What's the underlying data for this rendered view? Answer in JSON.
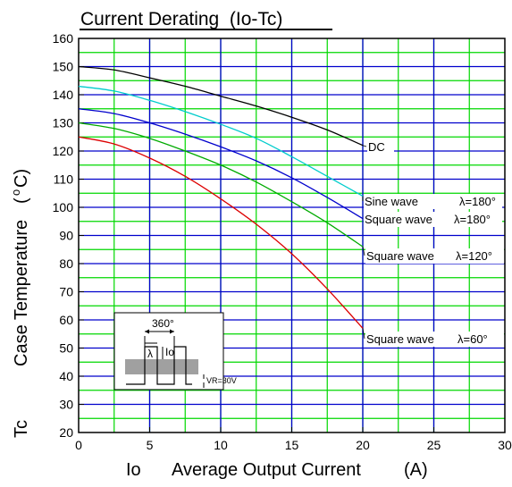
{
  "chart_data": {
    "type": "line",
    "title": "Current Derating  (Io-Tc)",
    "xlabel": {
      "symbol": "Io",
      "text": "Average Output Current",
      "unit": "(A)"
    },
    "ylabel": {
      "symbol": "Tc",
      "text": "Case Temperature",
      "unit_open": "(",
      "unit_sup": "o",
      "unit_rest": "C)"
    },
    "xlim": [
      0,
      30
    ],
    "ylim": [
      20,
      160
    ],
    "x_ticks": [
      0,
      5,
      10,
      15,
      20,
      25,
      30
    ],
    "y_ticks": [
      20,
      30,
      40,
      50,
      60,
      70,
      80,
      90,
      100,
      110,
      120,
      130,
      140,
      150,
      160
    ],
    "grid": true,
    "grid_colors": {
      "vertical": "#00d800",
      "horizontal_major": "#0000cc",
      "horizontal_minor": "#00d800"
    },
    "series": [
      {
        "label": "DC",
        "color": "#000000",
        "x": [
          0,
          2.5,
          5,
          7.5,
          10,
          12.5,
          15,
          17.5,
          20
        ],
        "y": [
          150,
          148.8,
          146,
          143,
          139.5,
          136,
          132,
          127.5,
          122
        ]
      },
      {
        "label": "Sine wave",
        "lambda": "λ=180°",
        "color": "#00cccc",
        "x": [
          0,
          2.5,
          5,
          7.5,
          10,
          12.5,
          15,
          17.5,
          20
        ],
        "y": [
          143,
          141.3,
          138,
          134,
          129.5,
          124.5,
          118,
          111,
          104
        ]
      },
      {
        "label": "Square wave",
        "lambda": "λ=180°",
        "color": "#0000cc",
        "x": [
          0,
          2.5,
          5,
          7.5,
          10,
          12.5,
          15,
          17.5,
          20
        ],
        "y": [
          135,
          133.3,
          130,
          126,
          121.5,
          116.5,
          110.5,
          103.5,
          96
        ]
      },
      {
        "label": "Square wave",
        "lambda": "λ=120°",
        "color": "#00aa00",
        "x": [
          0,
          2.5,
          5,
          7.5,
          10,
          12.5,
          15,
          17.5,
          20
        ],
        "y": [
          130,
          128,
          124.5,
          120,
          115,
          109,
          102,
          94.5,
          86
        ]
      },
      {
        "label": "Square wave",
        "lambda": "λ=60°",
        "color": "#dd0000",
        "x": [
          0,
          2.5,
          5,
          7.5,
          10,
          12.5,
          15,
          17.5,
          20
        ],
        "y": [
          125,
          122.5,
          117.5,
          111,
          103,
          94,
          83.5,
          71,
          57
        ]
      }
    ],
    "inset": {
      "angle_label": "360°",
      "lambda_label": "λ",
      "current_label": "Io",
      "voltage_label": "VR=30V"
    }
  }
}
